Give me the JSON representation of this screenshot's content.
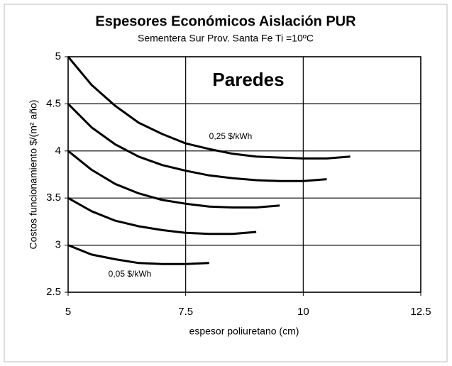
{
  "chart_data": {
    "type": "line",
    "title": "Espesores Económicos Aislación PUR",
    "subtitle": "Sementera Sur Prov. Santa Fe Ti =10ºC",
    "x_label": "espesor poliuretano (cm)",
    "y_label": "Costos funcionamiento  $/(m² año)",
    "annotations": [
      "Paredes",
      "0,25 $/kWh",
      "0,05 $/kWh"
    ],
    "xlim": [
      5,
      12.5
    ],
    "xticks": [
      5,
      7.5,
      10,
      12.5
    ],
    "ylim": [
      2.5,
      5
    ],
    "yticks": [
      2.5,
      3,
      3.5,
      4,
      4.5,
      5
    ],
    "grid": true,
    "series": [
      {
        "color": "#000000",
        "x": [
          5,
          5.5,
          6,
          6.5,
          7,
          7.5,
          8,
          8.5,
          9,
          9.5,
          10,
          10.5,
          11
        ],
        "values": [
          5.0,
          4.7,
          4.48,
          4.3,
          4.18,
          4.08,
          4.02,
          3.97,
          3.94,
          3.93,
          3.92,
          3.92,
          3.94
        ]
      },
      {
        "color": "#000000",
        "x": [
          5,
          5.5,
          6,
          6.5,
          7,
          7.5,
          8,
          8.5,
          9,
          9.5,
          10,
          10.5
        ],
        "values": [
          4.5,
          4.25,
          4.07,
          3.94,
          3.85,
          3.79,
          3.74,
          3.71,
          3.69,
          3.68,
          3.68,
          3.7
        ]
      },
      {
        "color": "#000000",
        "x": [
          5,
          5.5,
          6,
          6.5,
          7,
          7.5,
          8,
          8.5,
          9,
          9.5
        ],
        "values": [
          4.0,
          3.8,
          3.65,
          3.55,
          3.48,
          3.44,
          3.41,
          3.4,
          3.4,
          3.42
        ]
      },
      {
        "color": "#000000",
        "x": [
          5,
          5.5,
          6,
          6.5,
          7,
          7.5,
          8,
          8.5,
          9
        ],
        "values": [
          3.5,
          3.36,
          3.26,
          3.2,
          3.16,
          3.13,
          3.12,
          3.12,
          3.14
        ]
      },
      {
        "color": "#000000",
        "x": [
          5,
          5.5,
          6,
          6.5,
          7,
          7.5,
          8
        ],
        "values": [
          3.0,
          2.9,
          2.85,
          2.81,
          2.8,
          2.8,
          2.81
        ]
      }
    ]
  }
}
